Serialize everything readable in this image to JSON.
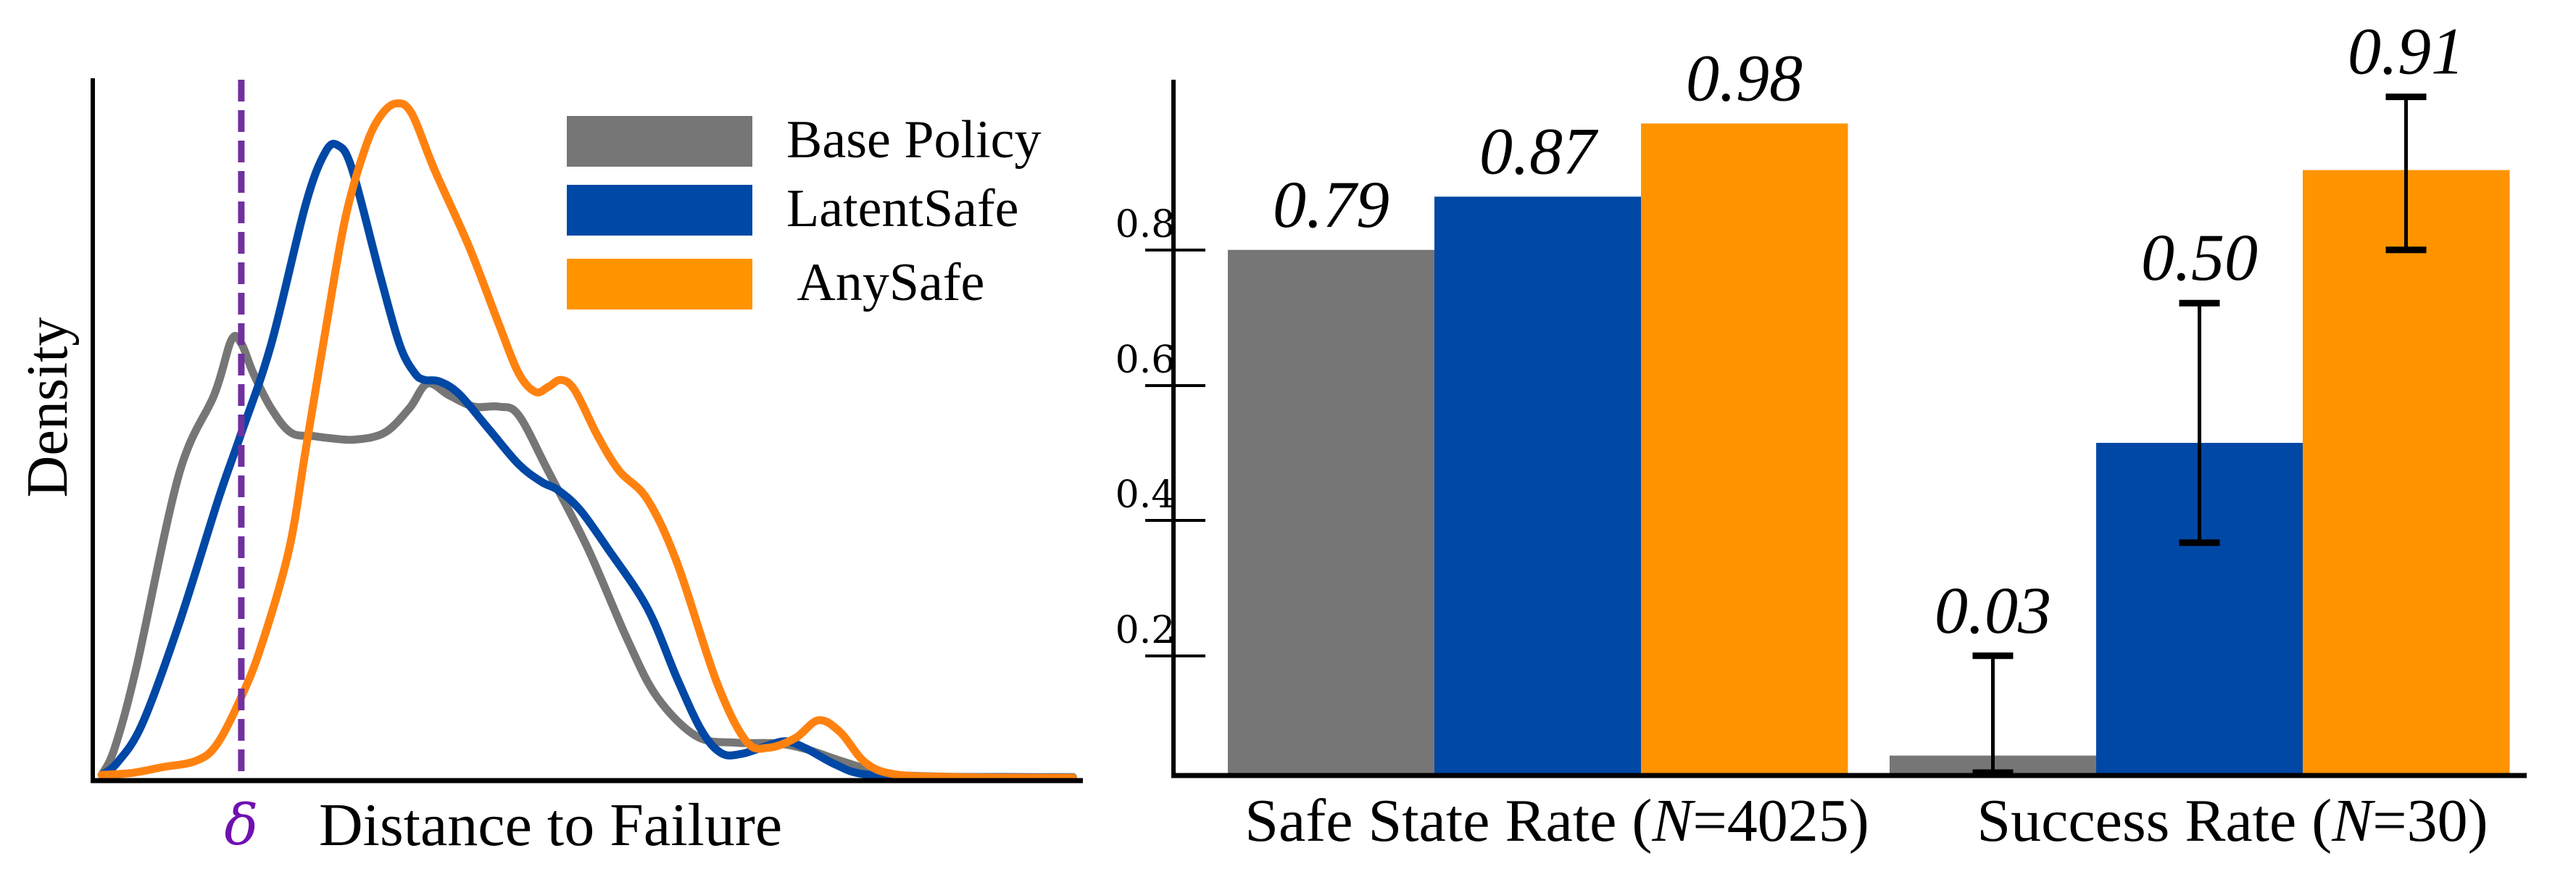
{
  "chart_data": [
    {
      "type": "line",
      "subtype": "density (KDE)",
      "title": "",
      "xlabel": "Distance to Failure",
      "ylabel": "Density",
      "x_units": "fraction of x-axis range (no tick labels shown)",
      "y_units": "fraction of y-axis range (no tick labels shown)",
      "xlim": [
        0,
        1
      ],
      "ylim": [
        0,
        1
      ],
      "grid": false,
      "legend_position": "top-right",
      "threshold": {
        "label": "δ",
        "x": 0.15,
        "style": "dashed",
        "color": "#7030A0"
      },
      "series": [
        {
          "name": "Base Policy",
          "color": "#767676",
          "points": [
            [
              0.009,
              0.007
            ],
            [
              0.022,
              0.045
            ],
            [
              0.044,
              0.16
            ],
            [
              0.087,
              0.435
            ],
            [
              0.123,
              0.55
            ],
            [
              0.14,
              0.627
            ],
            [
              0.15,
              0.622
            ],
            [
              0.162,
              0.58
            ],
            [
              0.18,
              0.53
            ],
            [
              0.2,
              0.495
            ],
            [
              0.223,
              0.49
            ],
            [
              0.24,
              0.487
            ],
            [
              0.265,
              0.485
            ],
            [
              0.295,
              0.495
            ],
            [
              0.32,
              0.53
            ],
            [
              0.338,
              0.565
            ],
            [
              0.36,
              0.548
            ],
            [
              0.385,
              0.532
            ],
            [
              0.41,
              0.532
            ],
            [
              0.43,
              0.52
            ],
            [
              0.46,
              0.44
            ],
            [
              0.5,
              0.33
            ],
            [
              0.54,
              0.2
            ],
            [
              0.57,
              0.118
            ],
            [
              0.61,
              0.062
            ],
            [
              0.65,
              0.053
            ],
            [
              0.69,
              0.052
            ],
            [
              0.72,
              0.044
            ],
            [
              0.76,
              0.025
            ],
            [
              0.8,
              0.009
            ],
            [
              0.85,
              0.005
            ],
            [
              0.92,
              0.004
            ],
            [
              0.99,
              0.004
            ]
          ]
        },
        {
          "name": "LatentSafe",
          "color": "#0048A5",
          "points": [
            [
              0.009,
              0.007
            ],
            [
              0.025,
              0.025
            ],
            [
              0.05,
              0.08
            ],
            [
              0.087,
              0.222
            ],
            [
              0.127,
              0.401
            ],
            [
              0.149,
              0.49
            ],
            [
              0.18,
              0.62
            ],
            [
              0.215,
              0.82
            ],
            [
              0.235,
              0.895
            ],
            [
              0.248,
              0.904
            ],
            [
              0.262,
              0.87
            ],
            [
              0.29,
              0.72
            ],
            [
              0.31,
              0.62
            ],
            [
              0.325,
              0.58
            ],
            [
              0.335,
              0.57
            ],
            [
              0.35,
              0.568
            ],
            [
              0.37,
              0.55
            ],
            [
              0.4,
              0.5
            ],
            [
              0.43,
              0.45
            ],
            [
              0.453,
              0.425
            ],
            [
              0.47,
              0.413
            ],
            [
              0.492,
              0.385
            ],
            [
              0.52,
              0.33
            ],
            [
              0.56,
              0.245
            ],
            [
              0.59,
              0.145
            ],
            [
              0.615,
              0.07
            ],
            [
              0.635,
              0.038
            ],
            [
              0.655,
              0.037
            ],
            [
              0.68,
              0.048
            ],
            [
              0.7,
              0.055
            ],
            [
              0.72,
              0.045
            ],
            [
              0.75,
              0.022
            ],
            [
              0.78,
              0.008
            ],
            [
              0.85,
              0.004
            ],
            [
              0.92,
              0.004
            ],
            [
              0.99,
              0.003
            ]
          ]
        },
        {
          "name": "AnySafe",
          "color": "#FF8210",
          "points": [
            [
              0.009,
              0.007
            ],
            [
              0.04,
              0.01
            ],
            [
              0.07,
              0.018
            ],
            [
              0.104,
              0.027
            ],
            [
              0.125,
              0.05
            ],
            [
              0.149,
              0.115
            ],
            [
              0.17,
              0.19
            ],
            [
              0.198,
              0.327
            ],
            [
              0.215,
              0.47
            ],
            [
              0.235,
              0.64
            ],
            [
              0.255,
              0.8
            ],
            [
              0.275,
              0.9
            ],
            [
              0.29,
              0.945
            ],
            [
              0.306,
              0.964
            ],
            [
              0.322,
              0.95
            ],
            [
              0.345,
              0.87
            ],
            [
              0.38,
              0.76
            ],
            [
              0.41,
              0.65
            ],
            [
              0.43,
              0.58
            ],
            [
              0.447,
              0.553
            ],
            [
              0.46,
              0.56
            ],
            [
              0.473,
              0.57
            ],
            [
              0.487,
              0.555
            ],
            [
              0.51,
              0.49
            ],
            [
              0.532,
              0.44
            ],
            [
              0.56,
              0.4
            ],
            [
              0.59,
              0.31
            ],
            [
              0.63,
              0.14
            ],
            [
              0.66,
              0.055
            ],
            [
              0.683,
              0.046
            ],
            [
              0.71,
              0.06
            ],
            [
              0.733,
              0.085
            ],
            [
              0.755,
              0.068
            ],
            [
              0.78,
              0.025
            ],
            [
              0.81,
              0.008
            ],
            [
              0.87,
              0.004
            ],
            [
              0.99,
              0.003
            ]
          ]
        }
      ]
    },
    {
      "type": "bar",
      "subtype": "grouped bar with error bars",
      "title": "",
      "xlabel": "",
      "ylabel": "",
      "ylim": [
        0,
        1.1
      ],
      "grid": false,
      "yticks": [
        0.2,
        0.4,
        0.6,
        0.8
      ],
      "ytick_labels": [
        "0.2",
        "0.4",
        "0.6",
        "0.8"
      ],
      "categories": [
        {
          "text": "Safe State Rate (",
          "italic": "N",
          "rest": "=4025)"
        },
        {
          "text": "Success Rate (",
          "italic": "N",
          "rest": "=30)"
        }
      ],
      "category_labels": [
        "Safe State Rate (N=4025)",
        "Success Rate (N=30)"
      ],
      "series": [
        {
          "name": "Base Policy",
          "color": "#767676",
          "values": [
            0.79,
            0.03
          ],
          "labels": [
            "0.79",
            "0.03"
          ],
          "error": [
            null,
            [
              0.0,
              0.18
            ]
          ]
        },
        {
          "name": "LatentSafe",
          "color": "#0048A5",
          "values": [
            0.87,
            0.5
          ],
          "labels": [
            "0.87",
            "0.50"
          ],
          "error": [
            null,
            [
              0.35,
              0.71
            ]
          ]
        },
        {
          "name": "AnySafe",
          "color": "#FF9400",
          "values": [
            0.98,
            0.91
          ],
          "labels": [
            "0.98",
            "0.91"
          ],
          "error": [
            null,
            [
              0.79,
              1.02
            ]
          ]
        }
      ]
    }
  ],
  "legend": {
    "items": [
      {
        "label": "Base Policy",
        "color": "#767676"
      },
      {
        "label": "LatentSafe",
        "color": "#0048A5"
      },
      {
        "label": " AnySafe",
        "color": "#FF9400"
      }
    ]
  },
  "density_plot": {
    "ylabel": "Density",
    "xlabel": "Distance to Failure",
    "delta_symbol": "δ",
    "delta_color": "#7030A0",
    "delta_label_color": "#7010B0"
  }
}
